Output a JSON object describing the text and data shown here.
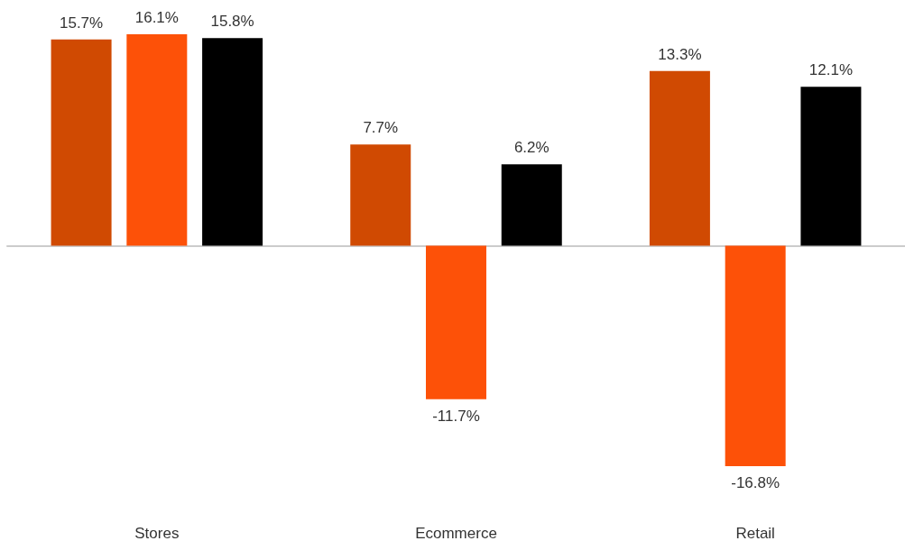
{
  "chart_data": {
    "type": "bar",
    "categories": [
      "Stores",
      "Ecommerce",
      "Retail"
    ],
    "series": [
      {
        "color": "#d04a02",
        "values": [
          15.7,
          7.7,
          13.3
        ],
        "value_labels": [
          "15.7%",
          "7.7%",
          "13.3%"
        ]
      },
      {
        "color": "#fd5108",
        "values": [
          16.1,
          -11.7,
          -16.8
        ],
        "value_labels": [
          "16.1%",
          "-11.7%",
          "-16.8%"
        ]
      },
      {
        "color": "#000000",
        "values": [
          15.8,
          6.2,
          12.1
        ],
        "value_labels": [
          "15.8%",
          "6.2%",
          "12.1%"
        ]
      }
    ]
  }
}
